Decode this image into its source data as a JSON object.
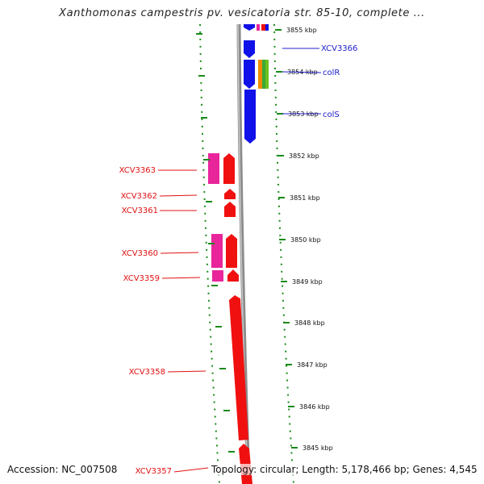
{
  "title": "Xanthomonas campestris pv. vesicatoria str. 85-10, complete ...",
  "footer": {
    "accession": "Accession: NC_007508",
    "topology": "Topology: circular; Length: 5,178,466 bp; Genes: 4,545"
  },
  "colors": {
    "backbone": "#8c8c8c",
    "tick": "#1a8a1a",
    "forward_gene": "#1010e8",
    "reverse_gene": "#f01010",
    "rna_gene": "#e8259a",
    "label_forward": "#2020cc",
    "label_reverse": "#e01010"
  },
  "kbp_marks": [
    {
      "label": "3855 kbp"
    },
    {
      "label": "3854 kbp"
    },
    {
      "label": "3853 kbp"
    },
    {
      "label": "3852 kbp"
    },
    {
      "label": "3851 kbp"
    },
    {
      "label": "3850 kbp"
    },
    {
      "label": "3849 kbp"
    },
    {
      "label": "3848 kbp"
    },
    {
      "label": "3847 kbp"
    },
    {
      "label": "3846 kbp"
    },
    {
      "label": "3845 kbp"
    }
  ],
  "genes": [
    {
      "label": "XCV3366",
      "strand": "forward"
    },
    {
      "label": "colR",
      "strand": "forward"
    },
    {
      "label": "colS",
      "strand": "forward"
    },
    {
      "label": "XCV3363",
      "strand": "reverse"
    },
    {
      "label": "XCV3362",
      "strand": "reverse"
    },
    {
      "label": "XCV3361",
      "strand": "reverse"
    },
    {
      "label": "XCV3360",
      "strand": "reverse"
    },
    {
      "label": "XCV3359",
      "strand": "reverse"
    },
    {
      "label": "XCV3358",
      "strand": "reverse"
    },
    {
      "label": "XCV3357",
      "strand": "reverse"
    }
  ]
}
